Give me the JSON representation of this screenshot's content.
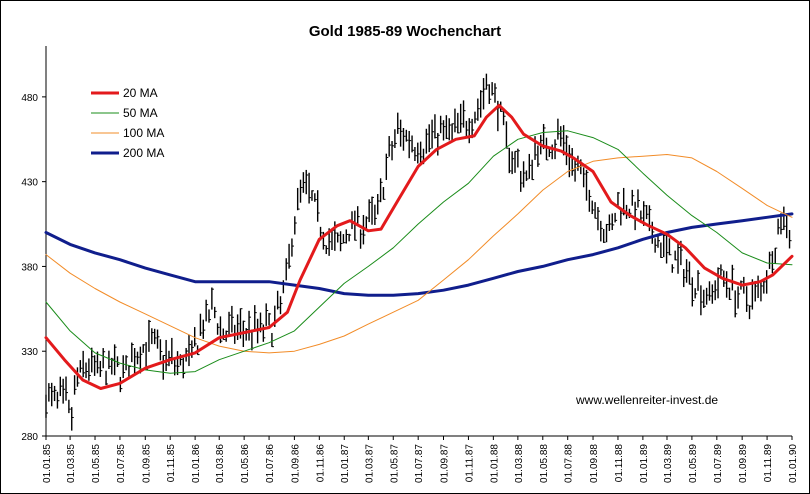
{
  "chart_data": {
    "type": "line",
    "title": "Gold 1985-89 Wochenchart",
    "watermark": "www.wellenreiter-invest.de",
    "ylim": [
      280,
      510
    ],
    "y_ticks": [
      {
        "value": 280,
        "label": "280"
      },
      {
        "value": 330,
        "label": "330"
      },
      {
        "value": 380,
        "label": "380"
      },
      {
        "value": 430,
        "label": "430"
      },
      {
        "value": 480,
        "label": "480"
      }
    ],
    "x_ticks": [
      "01.01.85",
      "01.03.85",
      "01.05.85",
      "01.07.85",
      "01.09.85",
      "01.11.85",
      "01.01.86",
      "01.03.86",
      "01.05.86",
      "01.07.86",
      "01.09.86",
      "01.11.86",
      "01.01.87",
      "01.03.87",
      "01.05.87",
      "01.07.87",
      "01.09.87",
      "01.11.87",
      "01.01.88",
      "01.03.88",
      "01.05.88",
      "01.07.88",
      "01.09.88",
      "01.11.88",
      "01.01.89",
      "01.03.89",
      "01.05.89",
      "01.07.89",
      "01.09.89",
      "01.11.89",
      "01.01.90"
    ],
    "legend": {
      "placement": "top-left",
      "grid": false,
      "entries": [
        {
          "label": "20 MA",
          "color": "#e31a1c",
          "width": 3
        },
        {
          "label": "50 MA",
          "color": "#1a8c1a",
          "width": 1
        },
        {
          "label": "100 MA",
          "color": "#f28c28",
          "width": 1
        },
        {
          "label": "200 MA",
          "color": "#101e8c",
          "width": 3
        }
      ]
    },
    "price_anchors": [
      {
        "x": "1985-01-01",
        "y": 302
      },
      {
        "x": "1985-02-20",
        "y": 300
      },
      {
        "x": "1985-03-01",
        "y": 288
      },
      {
        "x": "1985-03-20",
        "y": 315
      },
      {
        "x": "1985-04-15",
        "y": 322
      },
      {
        "x": "1985-05-10",
        "y": 318
      },
      {
        "x": "1985-06-10",
        "y": 320
      },
      {
        "x": "1985-07-15",
        "y": 318
      },
      {
        "x": "1985-08-15",
        "y": 330
      },
      {
        "x": "1985-09-15",
        "y": 335
      },
      {
        "x": "1985-10-20",
        "y": 326
      },
      {
        "x": "1985-12-01",
        "y": 322
      },
      {
        "x": "1985-12-25",
        "y": 328
      },
      {
        "x": "1986-01-20",
        "y": 345
      },
      {
        "x": "1986-02-15",
        "y": 355
      },
      {
        "x": "1986-03-10",
        "y": 340
      },
      {
        "x": "1986-04-15",
        "y": 343
      },
      {
        "x": "1986-06-01",
        "y": 343
      },
      {
        "x": "1986-07-15",
        "y": 345
      },
      {
        "x": "1986-08-15",
        "y": 375
      },
      {
        "x": "1986-09-05",
        "y": 415
      },
      {
        "x": "1986-09-25",
        "y": 430
      },
      {
        "x": "1986-10-20",
        "y": 415
      },
      {
        "x": "1986-11-20",
        "y": 395
      },
      {
        "x": "1986-12-20",
        "y": 392
      },
      {
        "x": "1987-01-20",
        "y": 405
      },
      {
        "x": "1987-02-20",
        "y": 405
      },
      {
        "x": "1987-03-20",
        "y": 410
      },
      {
        "x": "1987-04-15",
        "y": 438
      },
      {
        "x": "1987-05-10",
        "y": 460
      },
      {
        "x": "1987-06-10",
        "y": 455
      },
      {
        "x": "1987-07-10",
        "y": 450
      },
      {
        "x": "1987-08-15",
        "y": 460
      },
      {
        "x": "1987-09-15",
        "y": 458
      },
      {
        "x": "1987-10-20",
        "y": 465
      },
      {
        "x": "1987-11-20",
        "y": 470
      },
      {
        "x": "1987-12-15",
        "y": 488
      },
      {
        "x": "1988-01-10",
        "y": 478
      },
      {
        "x": "1988-02-05",
        "y": 450
      },
      {
        "x": "1988-03-01",
        "y": 440
      },
      {
        "x": "1988-03-20",
        "y": 430
      },
      {
        "x": "1988-04-15",
        "y": 450
      },
      {
        "x": "1988-05-15",
        "y": 452
      },
      {
        "x": "1988-06-15",
        "y": 457
      },
      {
        "x": "1988-07-15",
        "y": 440
      },
      {
        "x": "1988-08-15",
        "y": 428
      },
      {
        "x": "1988-09-15",
        "y": 410
      },
      {
        "x": "1988-10-10",
        "y": 398
      },
      {
        "x": "1988-11-05",
        "y": 418
      },
      {
        "x": "1988-12-10",
        "y": 415
      },
      {
        "x": "1989-01-10",
        "y": 405
      },
      {
        "x": "1989-02-05",
        "y": 395
      },
      {
        "x": "1989-03-10",
        "y": 385
      },
      {
        "x": "1989-04-10",
        "y": 380
      },
      {
        "x": "1989-05-10",
        "y": 370
      },
      {
        "x": "1989-06-10",
        "y": 362
      },
      {
        "x": "1989-07-15",
        "y": 375
      },
      {
        "x": "1989-08-15",
        "y": 365
      },
      {
        "x": "1989-09-20",
        "y": 360
      },
      {
        "x": "1989-10-20",
        "y": 368
      },
      {
        "x": "1989-11-20",
        "y": 393
      },
      {
        "x": "1989-12-10",
        "y": 410
      },
      {
        "x": "1989-12-31",
        "y": 400
      }
    ],
    "series": [
      {
        "name": "20 MA",
        "color": "#e31a1c",
        "width": 3,
        "points": [
          {
            "x": "1985-01-01",
            "y": 338
          },
          {
            "x": "1985-02-15",
            "y": 325
          },
          {
            "x": "1985-04-01",
            "y": 313
          },
          {
            "x": "1985-05-15",
            "y": 308
          },
          {
            "x": "1985-07-01",
            "y": 311
          },
          {
            "x": "1985-09-01",
            "y": 320
          },
          {
            "x": "1985-11-01",
            "y": 325
          },
          {
            "x": "1986-01-01",
            "y": 329
          },
          {
            "x": "1986-03-01",
            "y": 338
          },
          {
            "x": "1986-05-01",
            "y": 341
          },
          {
            "x": "1986-07-01",
            "y": 344
          },
          {
            "x": "1986-08-15",
            "y": 353
          },
          {
            "x": "1986-09-15",
            "y": 372
          },
          {
            "x": "1986-11-01",
            "y": 396
          },
          {
            "x": "1986-12-15",
            "y": 404
          },
          {
            "x": "1987-01-15",
            "y": 407
          },
          {
            "x": "1987-03-01",
            "y": 401
          },
          {
            "x": "1987-04-01",
            "y": 402
          },
          {
            "x": "1987-05-15",
            "y": 420
          },
          {
            "x": "1987-07-01",
            "y": 439
          },
          {
            "x": "1987-08-15",
            "y": 449
          },
          {
            "x": "1987-10-01",
            "y": 455
          },
          {
            "x": "1987-11-15",
            "y": 457
          },
          {
            "x": "1987-12-15",
            "y": 468
          },
          {
            "x": "1988-01-15",
            "y": 475
          },
          {
            "x": "1988-02-15",
            "y": 468
          },
          {
            "x": "1988-03-15",
            "y": 458
          },
          {
            "x": "1988-05-01",
            "y": 451
          },
          {
            "x": "1988-06-15",
            "y": 448
          },
          {
            "x": "1988-07-15",
            "y": 444
          },
          {
            "x": "1988-09-01",
            "y": 436
          },
          {
            "x": "1988-10-15",
            "y": 418
          },
          {
            "x": "1988-12-01",
            "y": 410
          },
          {
            "x": "1989-01-15",
            "y": 404
          },
          {
            "x": "1989-03-01",
            "y": 399
          },
          {
            "x": "1989-04-15",
            "y": 391
          },
          {
            "x": "1989-06-01",
            "y": 379
          },
          {
            "x": "1989-07-15",
            "y": 373
          },
          {
            "x": "1989-09-01",
            "y": 369
          },
          {
            "x": "1989-10-15",
            "y": 371
          },
          {
            "x": "1989-11-15",
            "y": 375
          },
          {
            "x": "1990-01-01",
            "y": 386
          }
        ]
      },
      {
        "name": "50 MA",
        "color": "#1a8c1a",
        "width": 1,
        "points": [
          {
            "x": "1985-01-01",
            "y": 359
          },
          {
            "x": "1985-03-01",
            "y": 342
          },
          {
            "x": "1985-05-01",
            "y": 329
          },
          {
            "x": "1985-07-01",
            "y": 323
          },
          {
            "x": "1985-09-01",
            "y": 319
          },
          {
            "x": "1985-11-01",
            "y": 317
          },
          {
            "x": "1986-01-01",
            "y": 318
          },
          {
            "x": "1986-03-01",
            "y": 325
          },
          {
            "x": "1986-05-01",
            "y": 330
          },
          {
            "x": "1986-07-01",
            "y": 335
          },
          {
            "x": "1986-09-01",
            "y": 342
          },
          {
            "x": "1986-11-01",
            "y": 356
          },
          {
            "x": "1987-01-01",
            "y": 370
          },
          {
            "x": "1987-03-01",
            "y": 380
          },
          {
            "x": "1987-05-01",
            "y": 391
          },
          {
            "x": "1987-07-01",
            "y": 405
          },
          {
            "x": "1987-09-01",
            "y": 418
          },
          {
            "x": "1987-11-01",
            "y": 429
          },
          {
            "x": "1988-01-01",
            "y": 445
          },
          {
            "x": "1988-03-01",
            "y": 455
          },
          {
            "x": "1988-05-01",
            "y": 459
          },
          {
            "x": "1988-07-01",
            "y": 460
          },
          {
            "x": "1988-09-01",
            "y": 456
          },
          {
            "x": "1988-11-01",
            "y": 449
          },
          {
            "x": "1989-01-01",
            "y": 435
          },
          {
            "x": "1989-03-01",
            "y": 422
          },
          {
            "x": "1989-05-01",
            "y": 410
          },
          {
            "x": "1989-07-01",
            "y": 400
          },
          {
            "x": "1989-09-01",
            "y": 388
          },
          {
            "x": "1989-11-01",
            "y": 382
          },
          {
            "x": "1990-01-01",
            "y": 381
          }
        ]
      },
      {
        "name": "100 MA",
        "color": "#f28c28",
        "width": 1,
        "points": [
          {
            "x": "1985-01-01",
            "y": 387
          },
          {
            "x": "1985-03-01",
            "y": 376
          },
          {
            "x": "1985-05-01",
            "y": 367
          },
          {
            "x": "1985-07-01",
            "y": 359
          },
          {
            "x": "1985-09-01",
            "y": 352
          },
          {
            "x": "1985-11-01",
            "y": 345
          },
          {
            "x": "1986-01-01",
            "y": 338
          },
          {
            "x": "1986-03-01",
            "y": 333
          },
          {
            "x": "1986-05-01",
            "y": 330
          },
          {
            "x": "1986-07-01",
            "y": 329
          },
          {
            "x": "1986-09-01",
            "y": 330
          },
          {
            "x": "1986-11-01",
            "y": 334
          },
          {
            "x": "1987-01-01",
            "y": 339
          },
          {
            "x": "1987-03-01",
            "y": 346
          },
          {
            "x": "1987-05-01",
            "y": 353
          },
          {
            "x": "1987-07-01",
            "y": 360
          },
          {
            "x": "1987-09-01",
            "y": 372
          },
          {
            "x": "1987-11-01",
            "y": 384
          },
          {
            "x": "1988-01-01",
            "y": 398
          },
          {
            "x": "1988-03-01",
            "y": 411
          },
          {
            "x": "1988-05-01",
            "y": 425
          },
          {
            "x": "1988-07-01",
            "y": 436
          },
          {
            "x": "1988-09-01",
            "y": 442
          },
          {
            "x": "1988-11-01",
            "y": 444
          },
          {
            "x": "1989-01-01",
            "y": 445
          },
          {
            "x": "1989-03-01",
            "y": 446
          },
          {
            "x": "1989-05-01",
            "y": 444
          },
          {
            "x": "1989-07-01",
            "y": 436
          },
          {
            "x": "1989-09-01",
            "y": 426
          },
          {
            "x": "1989-11-01",
            "y": 416
          },
          {
            "x": "1990-01-01",
            "y": 409
          }
        ]
      },
      {
        "name": "200 MA",
        "color": "#101e8c",
        "width": 3,
        "points": [
          {
            "x": "1985-01-01",
            "y": 400
          },
          {
            "x": "1985-03-01",
            "y": 393
          },
          {
            "x": "1985-05-01",
            "y": 388
          },
          {
            "x": "1985-07-01",
            "y": 384
          },
          {
            "x": "1985-09-01",
            "y": 379
          },
          {
            "x": "1985-11-01",
            "y": 375
          },
          {
            "x": "1986-01-01",
            "y": 371
          },
          {
            "x": "1986-03-01",
            "y": 371
          },
          {
            "x": "1986-05-01",
            "y": 371
          },
          {
            "x": "1986-07-01",
            "y": 371
          },
          {
            "x": "1986-09-01",
            "y": 369
          },
          {
            "x": "1986-11-01",
            "y": 367
          },
          {
            "x": "1987-01-01",
            "y": 364
          },
          {
            "x": "1987-03-01",
            "y": 363
          },
          {
            "x": "1987-05-01",
            "y": 363
          },
          {
            "x": "1987-07-01",
            "y": 364
          },
          {
            "x": "1987-09-01",
            "y": 366
          },
          {
            "x": "1987-11-01",
            "y": 369
          },
          {
            "x": "1988-01-01",
            "y": 373
          },
          {
            "x": "1988-03-01",
            "y": 377
          },
          {
            "x": "1988-05-01",
            "y": 380
          },
          {
            "x": "1988-07-01",
            "y": 384
          },
          {
            "x": "1988-09-01",
            "y": 387
          },
          {
            "x": "1988-11-01",
            "y": 391
          },
          {
            "x": "1989-01-01",
            "y": 396
          },
          {
            "x": "1989-03-01",
            "y": 400
          },
          {
            "x": "1989-05-01",
            "y": 403
          },
          {
            "x": "1989-07-01",
            "y": 405
          },
          {
            "x": "1989-09-01",
            "y": 407
          },
          {
            "x": "1989-11-01",
            "y": 409
          },
          {
            "x": "1990-01-01",
            "y": 411
          }
        ]
      }
    ]
  }
}
